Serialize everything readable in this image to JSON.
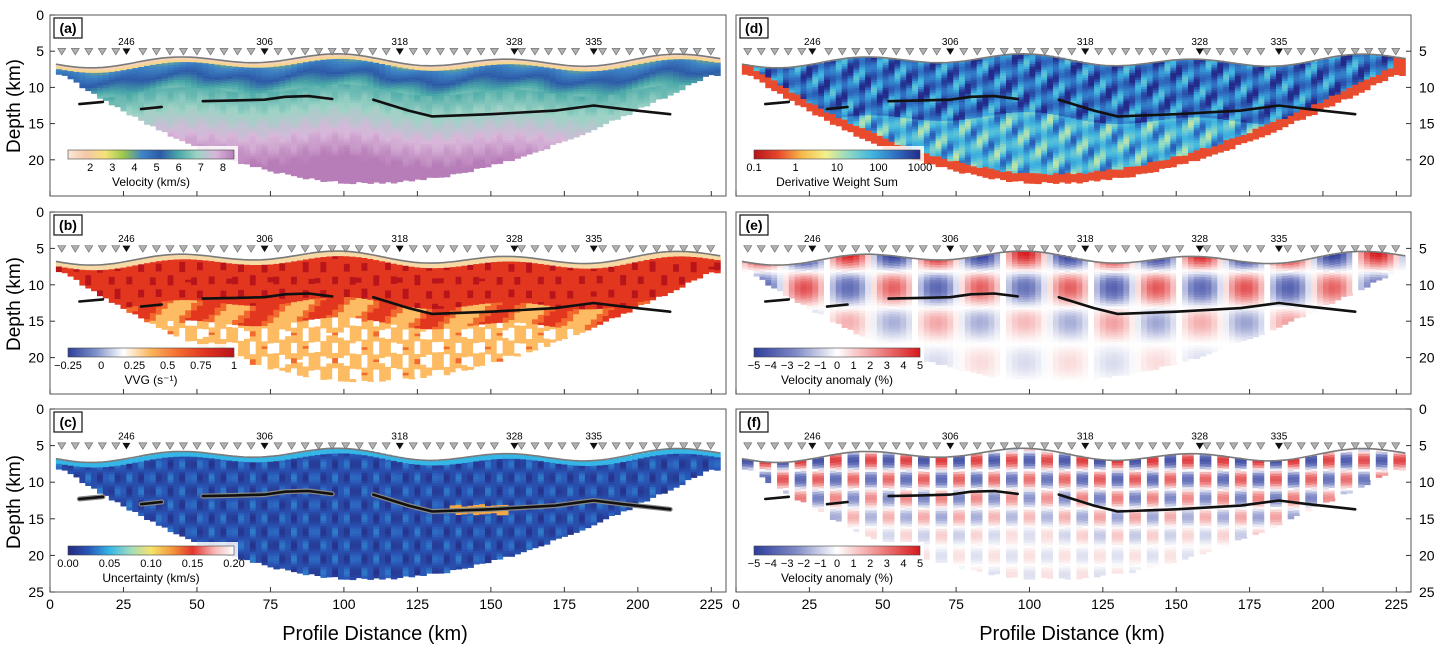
{
  "figure": {
    "xlabel": "Profile Distance (km)",
    "ylabel": "Depth (km)"
  },
  "chart_data": [
    {
      "id": "a",
      "type": "heatmap",
      "panel_label": "(a)",
      "xlim": [
        0,
        230
      ],
      "ylim": [
        25,
        0
      ],
      "x_ticks": [
        0,
        25,
        50,
        75,
        100,
        125,
        150,
        175,
        200,
        225
      ],
      "y_ticks": [
        0,
        5,
        10,
        15,
        20
      ],
      "station_labels": [
        {
          "text": "246",
          "x": 26
        },
        {
          "text": "306",
          "x": 73
        },
        {
          "text": "318",
          "x": 119
        },
        {
          "text": "328",
          "x": 158
        },
        {
          "text": "335",
          "x": 185
        }
      ],
      "colorbar": {
        "label": "Velocity (km/s)",
        "ticks": [
          "2",
          "3",
          "4",
          "5",
          "6",
          "7",
          "8"
        ],
        "colors": [
          "#fbe6d8",
          "#f4c8a6",
          "#f6e27a",
          "#9bc94a",
          "#3f86c6",
          "#2d5aa8",
          "#4aa9a8",
          "#9dd3c5",
          "#d9b6da",
          "#b77db8"
        ]
      },
      "colormap": "velocity",
      "interfaces": [
        [
          [
            10,
            12.3
          ],
          [
            18,
            12.0
          ]
        ],
        [
          [
            31,
            13.0
          ],
          [
            38,
            12.7
          ]
        ],
        [
          [
            52,
            11.9
          ],
          [
            63,
            11.8
          ],
          [
            73,
            11.7
          ],
          [
            80,
            11.3
          ],
          [
            88,
            11.2
          ],
          [
            96,
            11.6
          ]
        ],
        [
          [
            110,
            11.7
          ],
          [
            122,
            13.2
          ],
          [
            130,
            14.0
          ],
          [
            150,
            13.7
          ],
          [
            172,
            13.2
          ],
          [
            185,
            12.5
          ],
          [
            195,
            13.0
          ],
          [
            211,
            13.7
          ]
        ]
      ]
    },
    {
      "id": "d",
      "type": "heatmap",
      "panel_label": "(d)",
      "xlim": [
        0,
        230
      ],
      "ylim": [
        25,
        0
      ],
      "x_ticks": [
        0,
        25,
        50,
        75,
        100,
        125,
        150,
        175,
        200,
        225
      ],
      "y_ticks": [
        5,
        10,
        15,
        20
      ],
      "station_labels": [
        {
          "text": "246",
          "x": 26
        },
        {
          "text": "306",
          "x": 73
        },
        {
          "text": "318",
          "x": 119
        },
        {
          "text": "328",
          "x": 158
        },
        {
          "text": "335",
          "x": 185
        }
      ],
      "colorbar": {
        "label": "Derivative Weight Sum",
        "ticks": [
          "0.1",
          "1",
          "10",
          "100",
          "1000"
        ],
        "colors": [
          "#b5121b",
          "#e8452c",
          "#f7b84a",
          "#f4f08a",
          "#8fd9c3",
          "#3fb4e0",
          "#2f6ec2",
          "#232a8a"
        ]
      },
      "colormap": "dws",
      "interfaces": [
        [
          [
            10,
            12.3
          ],
          [
            18,
            12.0
          ]
        ],
        [
          [
            31,
            13.0
          ],
          [
            38,
            12.7
          ]
        ],
        [
          [
            52,
            11.9
          ],
          [
            63,
            11.8
          ],
          [
            73,
            11.7
          ],
          [
            80,
            11.3
          ],
          [
            88,
            11.2
          ],
          [
            96,
            11.6
          ]
        ],
        [
          [
            110,
            11.7
          ],
          [
            122,
            13.2
          ],
          [
            130,
            14.0
          ],
          [
            150,
            13.7
          ],
          [
            172,
            13.2
          ],
          [
            185,
            12.5
          ],
          [
            195,
            13.0
          ],
          [
            211,
            13.7
          ]
        ]
      ]
    },
    {
      "id": "b",
      "type": "heatmap",
      "panel_label": "(b)",
      "xlim": [
        0,
        230
      ],
      "ylim": [
        25,
        0
      ],
      "x_ticks": [
        0,
        25,
        50,
        75,
        100,
        125,
        150,
        175,
        200,
        225
      ],
      "y_ticks": [
        0,
        5,
        10,
        15,
        20
      ],
      "station_labels": [
        {
          "text": "246",
          "x": 26
        },
        {
          "text": "306",
          "x": 73
        },
        {
          "text": "318",
          "x": 119
        },
        {
          "text": "328",
          "x": 158
        },
        {
          "text": "335",
          "x": 185
        }
      ],
      "colorbar": {
        "label": "VVG (s⁻¹)",
        "ticks": [
          "−0.25",
          "0",
          "0.25",
          "0.5",
          "0.75",
          "1"
        ],
        "colors": [
          "#2d3f99",
          "#7d8fc9",
          "#ffffff",
          "#fbb45a",
          "#f26b2f",
          "#e0321f",
          "#b8141b"
        ]
      },
      "colormap": "vvg",
      "interfaces": [
        [
          [
            10,
            12.3
          ],
          [
            18,
            12.0
          ]
        ],
        [
          [
            31,
            13.0
          ],
          [
            38,
            12.7
          ]
        ],
        [
          [
            52,
            11.9
          ],
          [
            63,
            11.8
          ],
          [
            73,
            11.7
          ],
          [
            80,
            11.3
          ],
          [
            88,
            11.2
          ],
          [
            96,
            11.6
          ]
        ],
        [
          [
            110,
            11.7
          ],
          [
            122,
            13.2
          ],
          [
            130,
            14.0
          ],
          [
            150,
            13.7
          ],
          [
            172,
            13.2
          ],
          [
            185,
            12.5
          ],
          [
            195,
            13.0
          ],
          [
            211,
            13.7
          ]
        ]
      ]
    },
    {
      "id": "e",
      "type": "heatmap",
      "panel_label": "(e)",
      "xlim": [
        0,
        230
      ],
      "ylim": [
        25,
        0
      ],
      "x_ticks": [
        0,
        25,
        50,
        75,
        100,
        125,
        150,
        175,
        200,
        225
      ],
      "y_ticks": [
        5,
        10,
        15,
        20
      ],
      "station_labels": [
        {
          "text": "246",
          "x": 26
        },
        {
          "text": "306",
          "x": 73
        },
        {
          "text": "318",
          "x": 119
        },
        {
          "text": "328",
          "x": 158
        },
        {
          "text": "335",
          "x": 185
        }
      ],
      "colorbar": {
        "label": "Velocity anomaly (%)",
        "ticks": [
          "−5",
          "−4",
          "−3",
          "−2",
          "−1",
          "0",
          "1",
          "2",
          "3",
          "4",
          "5"
        ],
        "colors": [
          "#2e3d9a",
          "#7f89c6",
          "#ffffff",
          "#ef8a8a",
          "#d7191c"
        ]
      },
      "colormap": "checker_large",
      "interfaces": [
        [
          [
            10,
            12.3
          ],
          [
            18,
            12.0
          ]
        ],
        [
          [
            31,
            13.0
          ],
          [
            38,
            12.7
          ]
        ],
        [
          [
            52,
            11.9
          ],
          [
            63,
            11.8
          ],
          [
            73,
            11.7
          ],
          [
            80,
            11.3
          ],
          [
            88,
            11.2
          ],
          [
            96,
            11.6
          ]
        ],
        [
          [
            110,
            11.7
          ],
          [
            122,
            13.2
          ],
          [
            130,
            14.0
          ],
          [
            150,
            13.7
          ],
          [
            172,
            13.2
          ],
          [
            185,
            12.5
          ],
          [
            195,
            13.0
          ],
          [
            211,
            13.7
          ]
        ]
      ]
    },
    {
      "id": "c",
      "type": "heatmap",
      "panel_label": "(c)",
      "xlim": [
        0,
        230
      ],
      "ylim": [
        25,
        0
      ],
      "x_ticks": [
        0,
        25,
        50,
        75,
        100,
        125,
        150,
        175,
        200,
        225
      ],
      "y_ticks": [
        0,
        5,
        10,
        15,
        20,
        25
      ],
      "station_labels": [
        {
          "text": "246",
          "x": 26
        },
        {
          "text": "306",
          "x": 73
        },
        {
          "text": "318",
          "x": 119
        },
        {
          "text": "328",
          "x": 158
        },
        {
          "text": "335",
          "x": 185
        }
      ],
      "colorbar": {
        "label": "Uncertainty (km/s)",
        "ticks": [
          "0.00",
          "0.05",
          "0.10",
          "0.15",
          "0.20"
        ],
        "colors": [
          "#24287f",
          "#2a58b8",
          "#35b6e6",
          "#9fdcc0",
          "#f5e36b",
          "#f29a3d",
          "#e3342a",
          "#f5b0b0",
          "#ffffff"
        ]
      },
      "colormap": "uncertainty",
      "interfaces": [
        [
          [
            10,
            12.3
          ],
          [
            18,
            12.0
          ]
        ],
        [
          [
            31,
            13.0
          ],
          [
            38,
            12.7
          ]
        ],
        [
          [
            52,
            11.9
          ],
          [
            63,
            11.8
          ],
          [
            73,
            11.7
          ],
          [
            80,
            11.3
          ],
          [
            88,
            11.2
          ],
          [
            96,
            11.6
          ]
        ],
        [
          [
            110,
            11.7
          ],
          [
            122,
            13.2
          ],
          [
            130,
            14.0
          ],
          [
            150,
            13.7
          ],
          [
            172,
            13.2
          ],
          [
            185,
            12.5
          ],
          [
            195,
            13.0
          ],
          [
            211,
            13.7
          ]
        ]
      ]
    },
    {
      "id": "f",
      "type": "heatmap",
      "panel_label": "(f)",
      "xlim": [
        0,
        230
      ],
      "ylim": [
        25,
        0
      ],
      "x_ticks": [
        0,
        25,
        50,
        75,
        100,
        125,
        150,
        175,
        200,
        225
      ],
      "y_ticks": [
        0,
        5,
        10,
        15,
        20,
        25
      ],
      "station_labels": [
        {
          "text": "246",
          "x": 26
        },
        {
          "text": "306",
          "x": 73
        },
        {
          "text": "318",
          "x": 119
        },
        {
          "text": "328",
          "x": 158
        },
        {
          "text": "335",
          "x": 185
        }
      ],
      "colorbar": {
        "label": "Velocity anomaly (%)",
        "ticks": [
          "−5",
          "−4",
          "−3",
          "−2",
          "−1",
          "0",
          "1",
          "2",
          "3",
          "4",
          "5"
        ],
        "colors": [
          "#2e3d9a",
          "#7f89c6",
          "#ffffff",
          "#ef8a8a",
          "#d7191c"
        ]
      },
      "colormap": "checker_small",
      "interfaces": [
        [
          [
            10,
            12.3
          ],
          [
            18,
            12.0
          ]
        ],
        [
          [
            31,
            13.0
          ],
          [
            38,
            12.7
          ]
        ],
        [
          [
            52,
            11.9
          ],
          [
            63,
            11.8
          ],
          [
            73,
            11.7
          ],
          [
            80,
            11.3
          ],
          [
            88,
            11.2
          ],
          [
            96,
            11.6
          ]
        ],
        [
          [
            110,
            11.7
          ],
          [
            122,
            13.2
          ],
          [
            130,
            14.0
          ],
          [
            150,
            13.7
          ],
          [
            172,
            13.2
          ],
          [
            185,
            12.5
          ],
          [
            195,
            13.0
          ],
          [
            211,
            13.7
          ]
        ]
      ]
    }
  ]
}
